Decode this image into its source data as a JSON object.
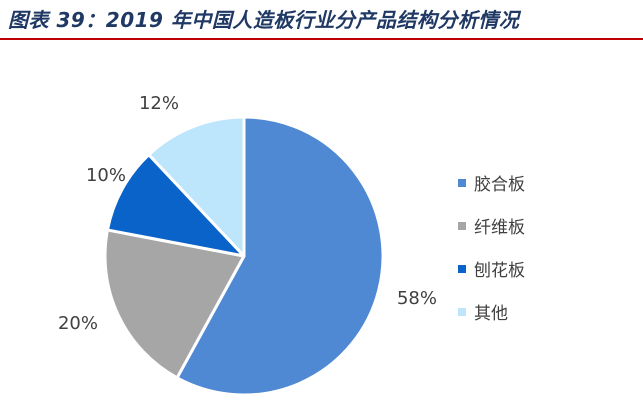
{
  "header": {
    "title": "图表 39：2019 年中国人造板行业分产品结构分析情况"
  },
  "chart_data": {
    "type": "pie",
    "title": "图表 39：2019 年中国人造板行业分产品结构分析情况",
    "categories": [
      "胶合板",
      "纤维板",
      "刨花板",
      "其他"
    ],
    "values": [
      58,
      20,
      10,
      12
    ],
    "labels": [
      "58%",
      "20%",
      "10%",
      "12%"
    ],
    "colors": [
      "#4f88d3",
      "#a6a6a6",
      "#0a63c9",
      "#bde5fb"
    ],
    "legend_position": "right"
  },
  "legend": {
    "items": [
      {
        "label": "胶合板",
        "color": "#4f88d3"
      },
      {
        "label": "纤维板",
        "color": "#a6a6a6"
      },
      {
        "label": "刨花板",
        "color": "#0a63c9"
      },
      {
        "label": "其他",
        "color": "#bde5fb"
      }
    ]
  },
  "colors": {
    "title": "#1f3864",
    "rule": "#c00000"
  }
}
